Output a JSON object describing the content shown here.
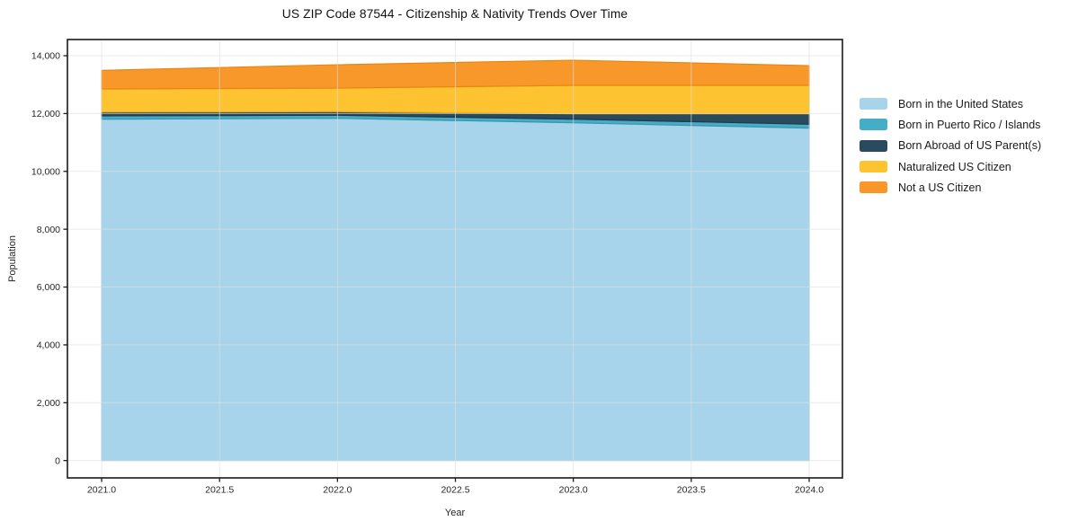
{
  "figure": {
    "background": "#ffffff"
  },
  "chart_data": {
    "type": "area",
    "stacked": true,
    "title": "US ZIP Code 87544 - Citizenship & Nativity Trends Over Time",
    "xlabel": "Year",
    "ylabel": "Population",
    "x": [
      2021,
      2022,
      2023,
      2024
    ],
    "series": [
      {
        "name": "Born in the United States",
        "color": "#a7d4ea",
        "edge": "#8bc3df",
        "values": [
          11805,
          11836,
          11681,
          11494
        ]
      },
      {
        "name": "Born in Puerto Rico / Islands",
        "color": "#45aec6",
        "edge": "#3795ad",
        "values": [
          115,
          105,
          124,
          137
        ]
      },
      {
        "name": "Born Abroad of US Parent(s)",
        "color": "#2a4a5e",
        "edge": "#1e3848",
        "values": [
          133,
          124,
          187,
          360
        ]
      },
      {
        "name": "Naturalized US Citizen",
        "color": "#fdc331",
        "edge": "#efae10",
        "values": [
          797,
          816,
          983,
          984
        ]
      },
      {
        "name": "Not a US Citizen",
        "color": "#f8982b",
        "edge": "#ea8512",
        "values": [
          644,
          808,
          869,
          683
        ]
      }
    ],
    "xlim": [
      2020.855,
      2024.141
    ],
    "ylim": [
      -600,
      14560
    ],
    "xticks": [
      2021.0,
      2021.5,
      2022.0,
      2022.5,
      2023.0,
      2023.5,
      2024.0
    ],
    "yticks": [
      0,
      2000,
      4000,
      6000,
      8000,
      10000,
      12000,
      14000
    ],
    "grid": true,
    "legend_position": "outside-right"
  },
  "axes": {
    "spine_color": "#1a1a1a",
    "tick_label_color": "#262626",
    "grid_color": "#dfdfdf"
  }
}
